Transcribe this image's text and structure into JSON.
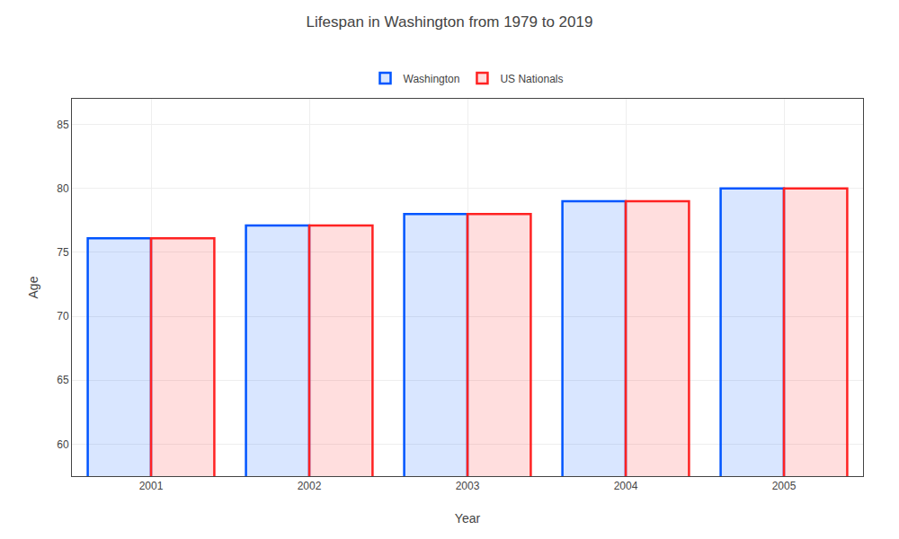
{
  "chart_data": {
    "type": "bar",
    "title": "Lifespan in Washington from 1979 to 2019",
    "x_label": "Year",
    "y_label": "Age",
    "categories": [
      "2001",
      "2002",
      "2003",
      "2004",
      "2005"
    ],
    "series": [
      {
        "name": "Washington",
        "color": "#0055ff",
        "values": [
          76.1,
          77.1,
          78.0,
          79.0,
          80.0
        ]
      },
      {
        "name": "US Nationals",
        "color": "#ff2222",
        "values": [
          76.1,
          77.1,
          78.0,
          79.0,
          80.0
        ]
      }
    ],
    "ylim": [
      57.5,
      87
    ],
    "yticks": [
      60,
      65,
      70,
      75,
      80,
      85
    ],
    "grid": true,
    "legend": "upper center"
  }
}
